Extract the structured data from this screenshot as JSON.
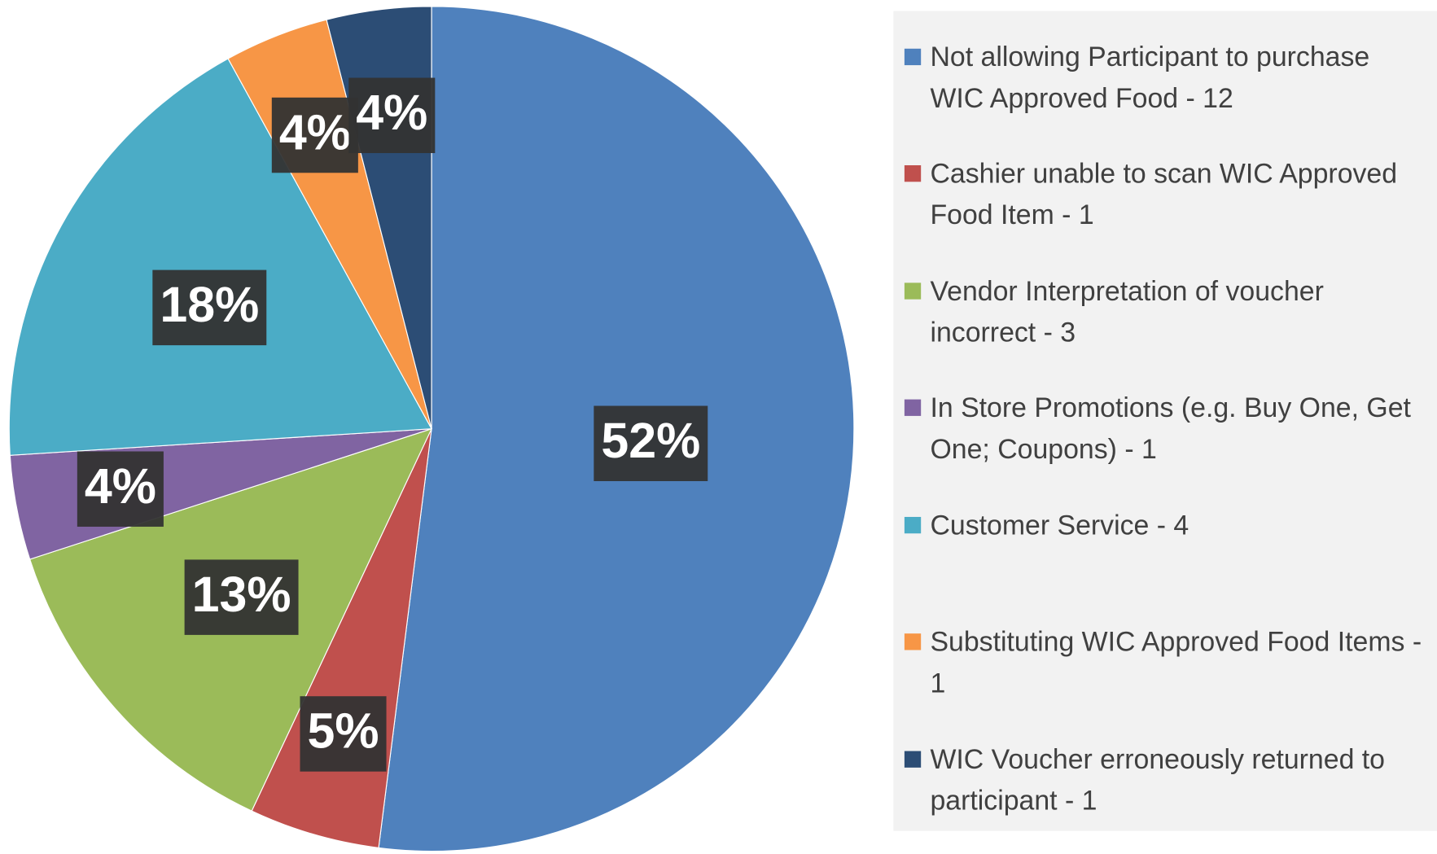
{
  "chart_data": {
    "type": "pie",
    "categories": [
      "Not  allowing Participant to purchase WIC Approved Food - 12",
      "Cashier unable to scan WIC Approved Food Item - 1",
      "Vendor Interpretation of voucher incorrect - 3",
      "In Store Promotions (e.g. Buy One, Get One; Coupons) - 1",
      "Customer Service - 4",
      "Substituting WIC Approved Food Items - 1",
      "WIC Voucher erroneously returned to participant - 1"
    ],
    "values": [
      52,
      5,
      13,
      4,
      18,
      4,
      4
    ],
    "value_labels": [
      "52%",
      "5%",
      "13%",
      "4%",
      "18%",
      "4%",
      "4%"
    ],
    "colors": [
      "#4f81bd",
      "#c0504d",
      "#9bbb59",
      "#8064a2",
      "#4bacc6",
      "#f79646",
      "#2c4d75"
    ]
  }
}
